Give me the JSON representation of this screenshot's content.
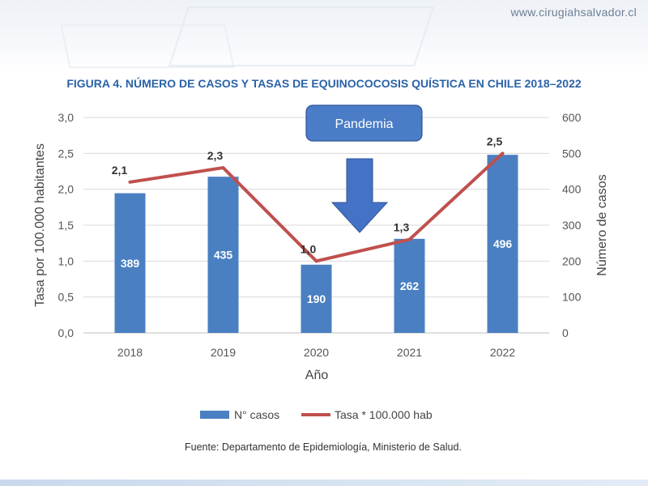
{
  "site_url": "www.cirugiahsalvador.cl",
  "figure_title": "FIGURA 4. NÚMERO DE CASOS Y TASAS DE EQUINOCOCOSIS QUÍSTICA EN CHILE 2018–2022",
  "source": "Fuente: Departamento de Epidemiología, Ministerio de Salud.",
  "annotation": {
    "label": "Pandemia",
    "box_color": "#4a7cc7",
    "arrow_color": "#4472c4"
  },
  "chart_data": {
    "type": "bar",
    "categories": [
      "2018",
      "2019",
      "2020",
      "2021",
      "2022"
    ],
    "xlabel": "Año",
    "ylabel_left": "Tasa por 100.000 habitantes",
    "ylabel_right": "Número de casos",
    "ylim_left": [
      0,
      3
    ],
    "ylim_right": [
      0,
      600
    ],
    "yticks_left": [
      "0,0",
      "0,5",
      "1,0",
      "1,5",
      "2,0",
      "2,5",
      "3,0"
    ],
    "yticks_right": [
      "0",
      "100",
      "200",
      "300",
      "400",
      "500",
      "600"
    ],
    "grid": true,
    "legend_position": "bottom",
    "series": [
      {
        "name": "N° casos",
        "type": "bar",
        "axis": "right",
        "color": "#4a80c2",
        "values": [
          389,
          435,
          190,
          262,
          496
        ],
        "labels": [
          "389",
          "435",
          "190",
          "262",
          "496"
        ]
      },
      {
        "name": "Tasa * 100.000 hab",
        "type": "line",
        "axis": "left",
        "color": "#c0504d",
        "values": [
          2.1,
          2.3,
          1.0,
          1.3,
          2.5
        ],
        "labels": [
          "2,1",
          "2,3",
          "1,0",
          "1,3",
          "2,5"
        ]
      }
    ]
  }
}
